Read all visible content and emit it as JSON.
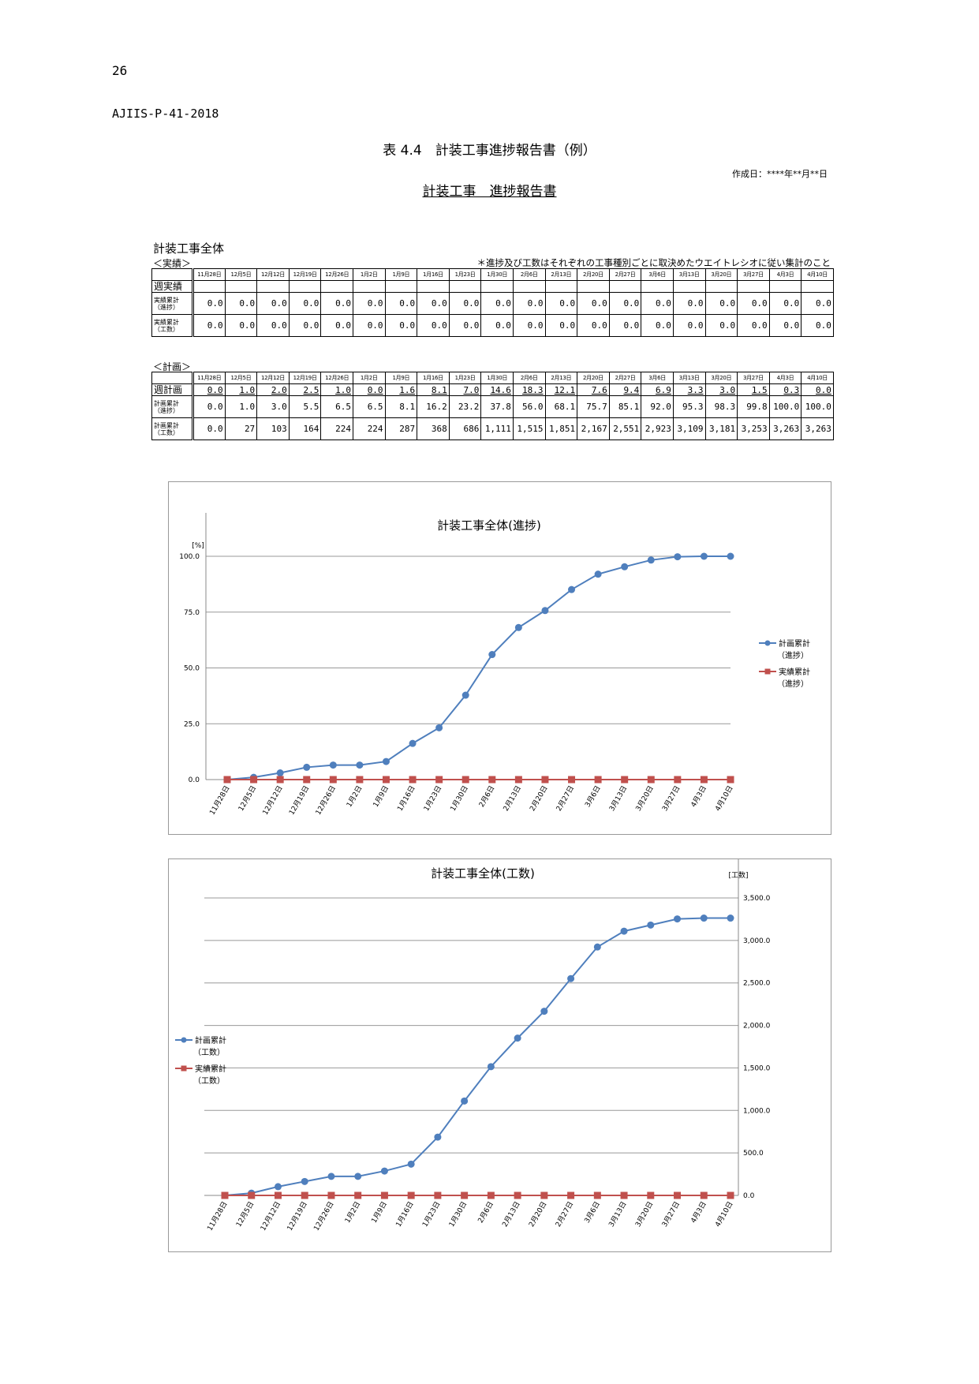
{
  "page_number": "26",
  "doc_id": "AJIIS-P-41-2018",
  "table_caption": "表 4.4　計装工事進捗報告書（例）",
  "created_date": "作成日：****年**月**日",
  "report_title": "計装工事　進捗報告書",
  "section_title": "計装工事全体",
  "dates": [
    "11月28日",
    "12月5日",
    "12月12日",
    "12月19日",
    "12月26日",
    "1月2日",
    "1月9日",
    "1月16日",
    "1月23日",
    "1月30日",
    "2月6日",
    "2月13日",
    "2月20日",
    "2月27日",
    "3月6日",
    "3月13日",
    "3月20日",
    "3月27日",
    "4月3日",
    "4月10日"
  ],
  "actual": {
    "label": "＜実績＞",
    "note": "＊進捗及び工数はそれぞれの工事種別ごとに取決めたウエイトレシオに従い集計のこと",
    "rows": [
      {
        "label": "週実績",
        "values": [
          "",
          "",
          "",
          "",
          "",
          "",
          "",
          "",
          "",
          "",
          "",
          "",
          "",
          "",
          "",
          "",
          "",
          "",
          "",
          ""
        ]
      },
      {
        "label_lines": [
          "実績累計",
          "（進捗）"
        ],
        "values": [
          "0.0",
          "0.0",
          "0.0",
          "0.0",
          "0.0",
          "0.0",
          "0.0",
          "0.0",
          "0.0",
          "0.0",
          "0.0",
          "0.0",
          "0.0",
          "0.0",
          "0.0",
          "0.0",
          "0.0",
          "0.0",
          "0.0",
          "0.0"
        ]
      },
      {
        "label_lines": [
          "実績累計",
          "（工数）"
        ],
        "values": [
          "0.0",
          "0.0",
          "0.0",
          "0.0",
          "0.0",
          "0.0",
          "0.0",
          "0.0",
          "0.0",
          "0.0",
          "0.0",
          "0.0",
          "0.0",
          "0.0",
          "0.0",
          "0.0",
          "0.0",
          "0.0",
          "0.0",
          "0.0"
        ]
      }
    ]
  },
  "plan": {
    "label": "＜計画＞",
    "rows": [
      {
        "label": "週計画",
        "values": [
          "0.0",
          "1.0",
          "2.0",
          "2.5",
          "1.0",
          "0.0",
          "1.6",
          "8.1",
          "7.0",
          "14.6",
          "18.3",
          "12.1",
          "7.6",
          "9.4",
          "6.9",
          "3.3",
          "3.0",
          "1.5",
          "0.3",
          "0.0"
        ]
      },
      {
        "label_lines": [
          "計画累計",
          "（進捗）"
        ],
        "values": [
          "0.0",
          "1.0",
          "3.0",
          "5.5",
          "6.5",
          "6.5",
          "8.1",
          "16.2",
          "23.2",
          "37.8",
          "56.0",
          "68.1",
          "75.7",
          "85.1",
          "92.0",
          "95.3",
          "98.3",
          "99.8",
          "100.0",
          "100.0"
        ]
      },
      {
        "label_lines": [
          "計画累計",
          "（工数）"
        ],
        "values": [
          "0.0",
          "27",
          "103",
          "164",
          "224",
          "224",
          "287",
          "368",
          "686",
          "1,111",
          "1,515",
          "1,851",
          "2,167",
          "2,551",
          "2,923",
          "3,109",
          "3,181",
          "3,253",
          "3,263",
          "3,263"
        ]
      }
    ]
  },
  "chart_data": [
    {
      "type": "line",
      "title": "計装工事全体(進捗)",
      "ylabel": "[%]",
      "ylim": [
        0,
        100
      ],
      "yticks": [
        "0.0",
        "25.0",
        "50.0",
        "75.0",
        "100.0"
      ],
      "grid": true,
      "legend_position": "right",
      "categories": [
        "11月28日",
        "12月5日",
        "12月12日",
        "12月19日",
        "12月26日",
        "1月2日",
        "1月9日",
        "1月16日",
        "1月23日",
        "1月30日",
        "2月6日",
        "2月13日",
        "2月20日",
        "2月27日",
        "3月6日",
        "3月13日",
        "3月20日",
        "3月27日",
        "4月3日",
        "4月10日"
      ],
      "series": [
        {
          "name_lines": [
            "計画累計",
            "（進捗）"
          ],
          "color": "#4f7fbd",
          "marker": "circle",
          "values": [
            0.0,
            1.0,
            3.0,
            5.5,
            6.5,
            6.5,
            8.1,
            16.2,
            23.2,
            37.8,
            56.0,
            68.1,
            75.7,
            85.1,
            92.0,
            95.3,
            98.3,
            99.8,
            100.0,
            100.0
          ]
        },
        {
          "name_lines": [
            "実績累計",
            "（進捗）"
          ],
          "color": "#c0504d",
          "marker": "square",
          "values": [
            0,
            0,
            0,
            0,
            0,
            0,
            0,
            0,
            0,
            0,
            0,
            0,
            0,
            0,
            0,
            0,
            0,
            0,
            0,
            0
          ]
        }
      ]
    },
    {
      "type": "line",
      "title": "計装工事全体(工数)",
      "ylabel": "[工数]",
      "ylim": [
        0,
        3500
      ],
      "yticks": [
        "0.0",
        "500.0",
        "1,000.0",
        "1,500.0",
        "2,000.0",
        "2,500.0",
        "3,000.0",
        "3,500.0"
      ],
      "grid": true,
      "legend_position": "left",
      "y_axis_side": "right",
      "categories": [
        "11月28日",
        "12月5日",
        "12月12日",
        "12月19日",
        "12月26日",
        "1月2日",
        "1月9日",
        "1月16日",
        "1月23日",
        "1月30日",
        "2月6日",
        "2月13日",
        "2月20日",
        "2月27日",
        "3月6日",
        "3月13日",
        "3月20日",
        "3月27日",
        "4月3日",
        "4月10日"
      ],
      "series": [
        {
          "name_lines": [
            "計画累計",
            "（工数）"
          ],
          "color": "#4f7fbd",
          "marker": "circle",
          "values": [
            0,
            27,
            103,
            164,
            224,
            224,
            287,
            368,
            686,
            1111,
            1515,
            1851,
            2167,
            2551,
            2923,
            3109,
            3181,
            3253,
            3263,
            3263
          ]
        },
        {
          "name_lines": [
            "実績累計",
            "（工数）"
          ],
          "color": "#c0504d",
          "marker": "square",
          "values": [
            0,
            0,
            0,
            0,
            0,
            0,
            0,
            0,
            0,
            0,
            0,
            0,
            0,
            0,
            0,
            0,
            0,
            0,
            0,
            0
          ]
        }
      ]
    }
  ]
}
